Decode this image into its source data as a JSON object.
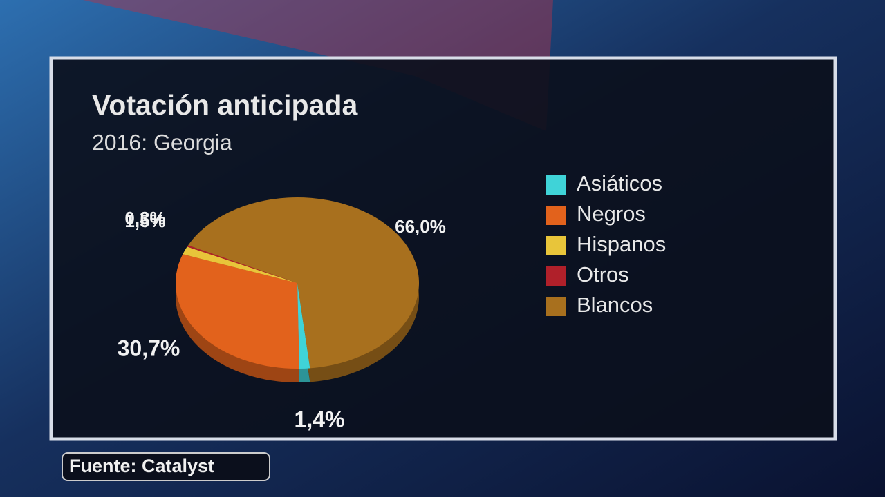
{
  "chart_data": {
    "type": "pie",
    "title": "Votación anticipada",
    "subtitle": "2016: Georgia",
    "categories": [
      "Asiáticos",
      "Negros",
      "Hispanos",
      "Otros",
      "Blancos"
    ],
    "values": [
      1.4,
      30.7,
      1.5,
      0.3,
      66.0
    ],
    "value_labels": [
      "1,4%",
      "30,7%",
      "1,5%",
      "0,3%",
      "66,0%"
    ],
    "colors": [
      "#3fd3d8",
      "#e2621c",
      "#e8c53a",
      "#b0202a",
      "#a8701e"
    ],
    "legend": "right",
    "source": "Fuente: Catalyst"
  }
}
